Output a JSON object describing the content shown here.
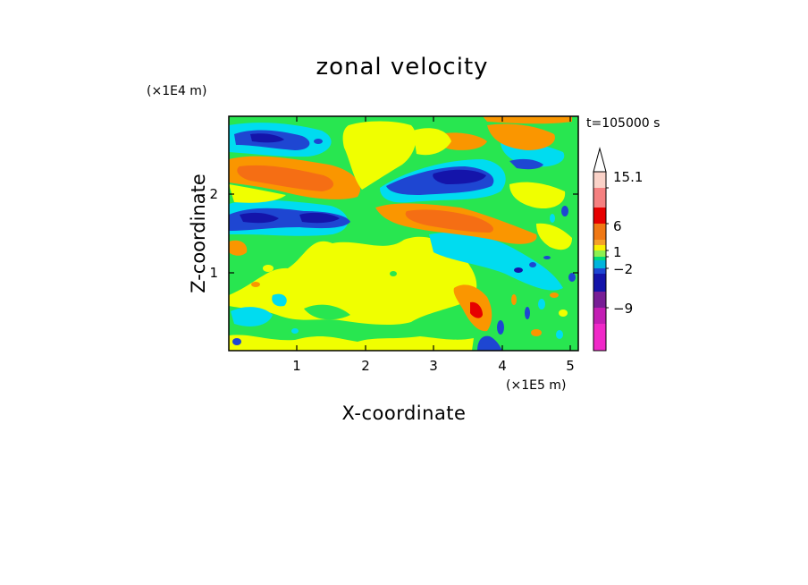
{
  "chart_data": {
    "type": "heatmap",
    "title": "zonal velocity",
    "xlabel": "X-coordinate",
    "ylabel": "Z-coordinate",
    "x_unit": "(×1E5 m)",
    "y_unit": "(×1E4 m)",
    "time_label": "t=105000 s",
    "xlim": [
      0,
      5.12
    ],
    "ylim": [
      0,
      2.95
    ],
    "x_ticks": [
      "1",
      "2",
      "3",
      "4",
      "5"
    ],
    "y_ticks": [
      "1",
      "2"
    ],
    "colorbar": {
      "labels": [
        "15.1",
        "6",
        "1",
        "−2",
        "−9"
      ],
      "colors": [
        "#fad2c8",
        "#f58080",
        "#e60000",
        "#f07814",
        "#f5a028",
        "#faf000",
        "#8cf050",
        "#00dc78",
        "#00b4dc",
        "#1e46d2",
        "#1414aa",
        "#781e96",
        "#c31eb4",
        "#f028c8"
      ]
    },
    "palette": {
      "magenta": "#f028c8",
      "purple": "#c31eb4",
      "darkblue": "#1414aa",
      "blue": "#1e46d2",
      "cyan": "#00dcf0",
      "green": "#28e650",
      "yellow": "#f0ff00",
      "orange": "#fa9600",
      "darkorange": "#f56e14",
      "red": "#e60000"
    }
  }
}
